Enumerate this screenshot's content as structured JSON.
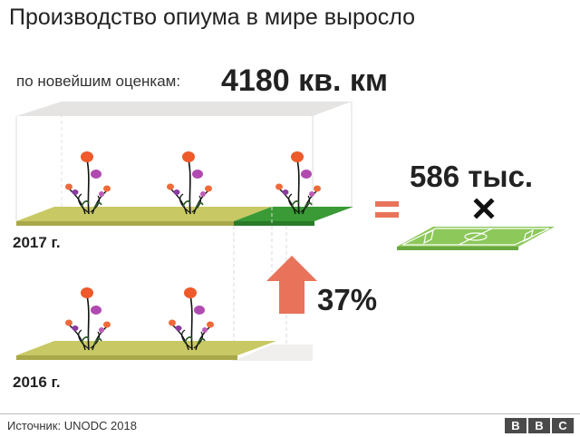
{
  "title": "Производство опиума в мире выросло",
  "estimate": {
    "label": "по новейшим оценкам:",
    "value": "4180 кв. км"
  },
  "years": {
    "y2017": "2017 г.",
    "y2016": "2016 г."
  },
  "growth": {
    "value": "37%"
  },
  "equivalent": {
    "fields_value": "586 тыс."
  },
  "footer": {
    "source": "Источник: UNODC 2018",
    "logo": [
      "B",
      "B",
      "C"
    ]
  },
  "colors": {
    "field_olive": "#c8c864",
    "field_new": "#3a9a36",
    "arrow": "#e8735a",
    "equals": "#e8735a",
    "football_pitch": "#8cc85a"
  }
}
